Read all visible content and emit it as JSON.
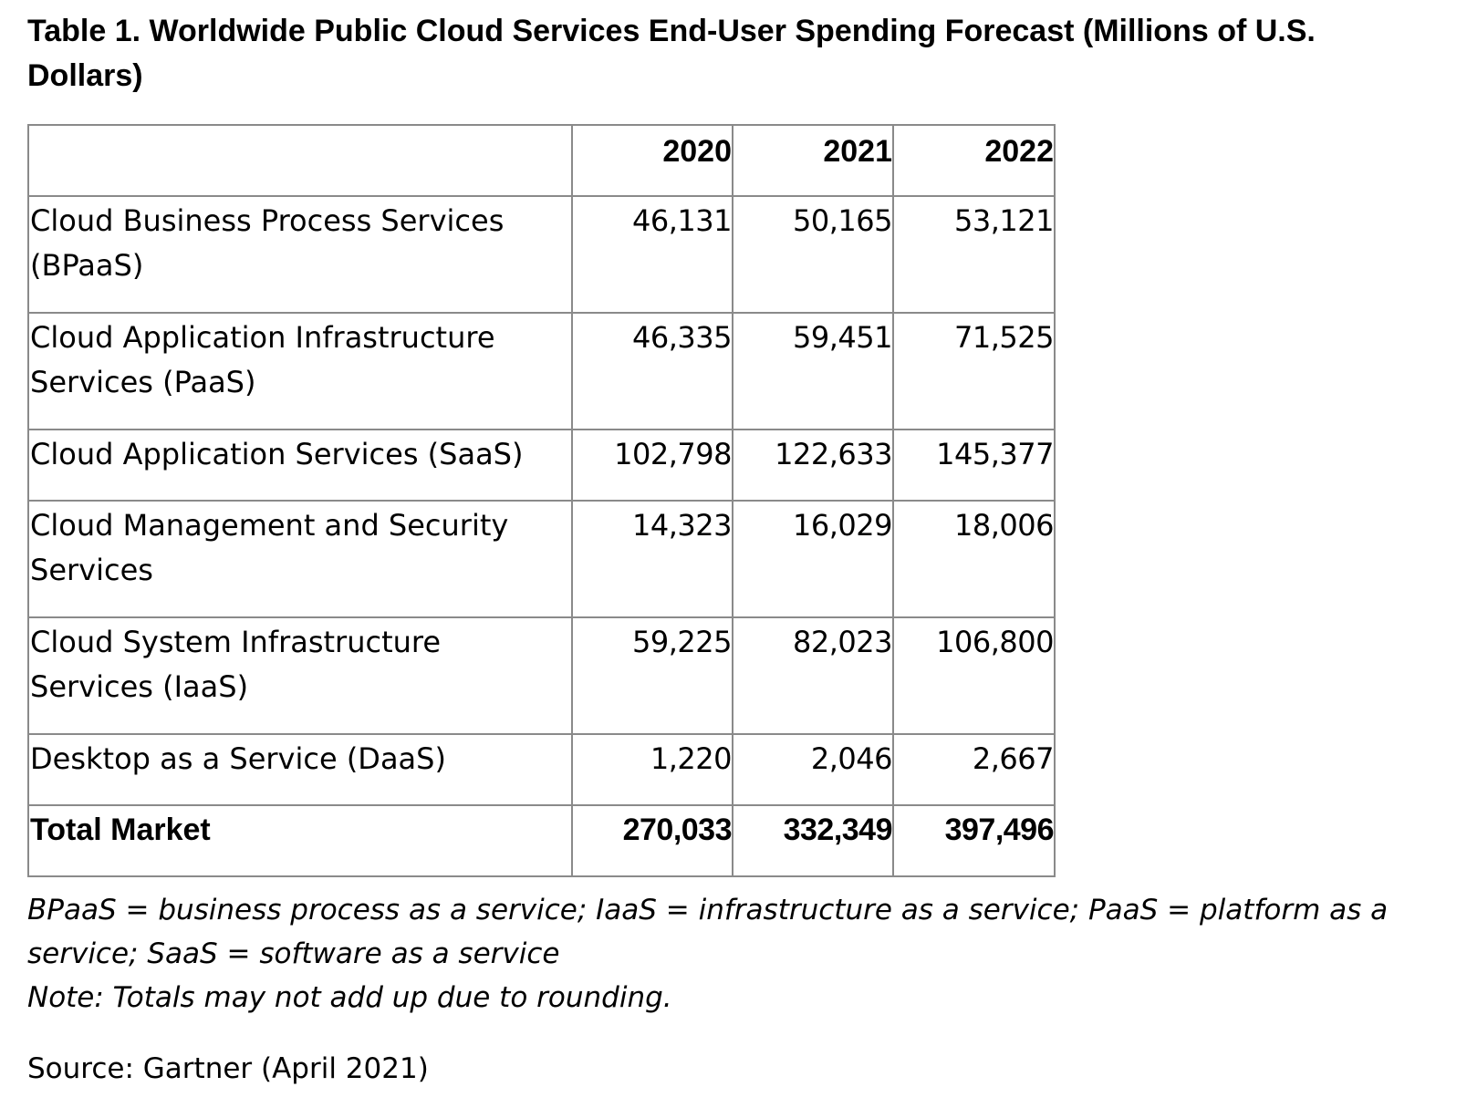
{
  "title": "Table 1. Worldwide Public Cloud Services End-User Spending Forecast (Millions of U.S. Dollars)",
  "chart_data": {
    "type": "table",
    "title": "Table 1. Worldwide Public Cloud Services End-User Spending Forecast (Millions of U.S. Dollars)",
    "columns": [
      "",
      "2020",
      "2021",
      "2022"
    ],
    "rows": [
      {
        "label": "Cloud Business Process Services (BPaaS)",
        "values": [
          "46,131",
          "50,165",
          "53,121"
        ]
      },
      {
        "label": "Cloud Application Infrastructure Services (PaaS)",
        "values": [
          "46,335",
          "59,451",
          "71,525"
        ]
      },
      {
        "label": "Cloud Application Services (SaaS)",
        "values": [
          "102,798",
          "122,633",
          "145,377"
        ]
      },
      {
        "label": "Cloud Management and Security Services",
        "values": [
          "14,323",
          "16,029",
          "18,006"
        ]
      },
      {
        "label": "Cloud System Infrastructure Services (IaaS)",
        "values": [
          "59,225",
          "82,023",
          "106,800"
        ]
      },
      {
        "label": "Desktop as a Service (DaaS)",
        "values": [
          "1,220",
          "2,046",
          "2,667"
        ]
      }
    ],
    "total": {
      "label": "Total Market",
      "values": [
        "270,033",
        "332,349",
        "397,496"
      ]
    }
  },
  "footnote": "BPaaS = business process as a service; IaaS = infrastructure as a service; PaaS = platform as a service; SaaS = software as a service",
  "note": "Note: Totals may not add up due to rounding.",
  "source": "Source: Gartner (April 2021)"
}
